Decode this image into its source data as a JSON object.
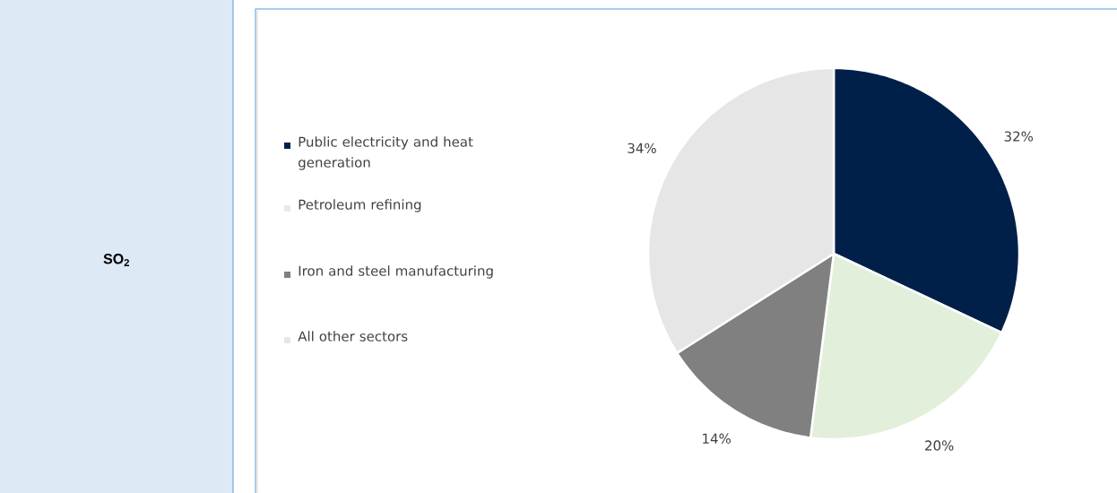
{
  "chart_data": {
    "type": "pie",
    "title": "SO$_{2}$",
    "categories": [
      "Public electricity and heat generation",
      "Petroleum refining",
      "Iron and steel manufacturing",
      "All other sectors"
    ],
    "values": [
      32,
      20,
      14,
      34
    ],
    "colors": [
      "#00204a",
      "#e2efda",
      "#808080",
      "#e6e6e6"
    ],
    "value_labels": [
      "32%",
      "20%",
      "14%",
      "34%"
    ],
    "legend": "left"
  }
}
